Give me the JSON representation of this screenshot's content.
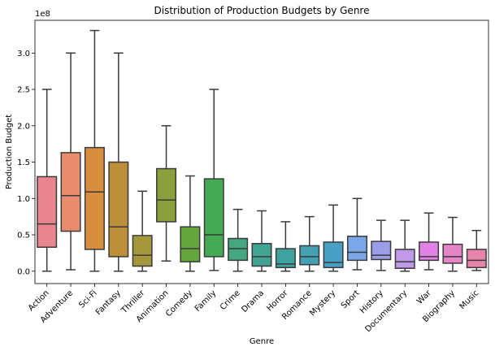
{
  "chart_data": {
    "type": "box",
    "title": "Distribution of Production Budgets by Genre",
    "xlabel": "Genre",
    "ylabel": "Production Budget",
    "y_offset_label": "1e8",
    "ylim": [
      -0.17,
      3.45
    ],
    "y_ticks": [
      0.0,
      0.5,
      1.0,
      1.5,
      2.0,
      2.5,
      3.0
    ],
    "y_tick_labels": [
      "0.0",
      "0.5",
      "1.0",
      "1.5",
      "2.0",
      "2.5",
      "3.0"
    ],
    "grid": false,
    "units_note": "values in units of 1e8",
    "categories": [
      "Action",
      "Adventure",
      "Sci-Fi",
      "Fantasy",
      "Thriller",
      "Animation",
      "Comedy",
      "Family",
      "Crime",
      "Drama",
      "Horror",
      "Romance",
      "Mystery",
      "Sport",
      "History",
      "Documentary",
      "War",
      "Biography",
      "Music"
    ],
    "boxes": [
      {
        "min": 0.0,
        "q1": 0.33,
        "median": 0.65,
        "q3": 1.3,
        "max": 2.5
      },
      {
        "min": 0.02,
        "q1": 0.55,
        "median": 1.04,
        "q3": 1.63,
        "max": 3.0
      },
      {
        "min": 0.0,
        "q1": 0.3,
        "median": 1.09,
        "q3": 1.7,
        "max": 3.31
      },
      {
        "min": 0.0,
        "q1": 0.2,
        "median": 0.61,
        "q3": 1.5,
        "max": 3.0
      },
      {
        "min": 0.0,
        "q1": 0.07,
        "median": 0.22,
        "q3": 0.49,
        "max": 1.1
      },
      {
        "min": 0.14,
        "q1": 0.68,
        "median": 0.98,
        "q3": 1.41,
        "max": 2.0
      },
      {
        "min": 0.0,
        "q1": 0.13,
        "median": 0.31,
        "q3": 0.61,
        "max": 1.31
      },
      {
        "min": 0.01,
        "q1": 0.2,
        "median": 0.5,
        "q3": 1.27,
        "max": 2.5
      },
      {
        "min": 0.0,
        "q1": 0.15,
        "median": 0.31,
        "q3": 0.45,
        "max": 0.85
      },
      {
        "min": 0.0,
        "q1": 0.07,
        "median": 0.2,
        "q3": 0.38,
        "max": 0.83
      },
      {
        "min": 0.0,
        "q1": 0.05,
        "median": 0.1,
        "q3": 0.31,
        "max": 0.68
      },
      {
        "min": 0.0,
        "q1": 0.09,
        "median": 0.2,
        "q3": 0.35,
        "max": 0.75
      },
      {
        "min": 0.0,
        "q1": 0.05,
        "median": 0.12,
        "q3": 0.4,
        "max": 0.91
      },
      {
        "min": 0.02,
        "q1": 0.15,
        "median": 0.26,
        "q3": 0.48,
        "max": 1.0
      },
      {
        "min": 0.01,
        "q1": 0.16,
        "median": 0.22,
        "q3": 0.41,
        "max": 0.7
      },
      {
        "min": 0.0,
        "q1": 0.04,
        "median": 0.13,
        "q3": 0.3,
        "max": 0.7
      },
      {
        "min": 0.02,
        "q1": 0.15,
        "median": 0.2,
        "q3": 0.4,
        "max": 0.8
      },
      {
        "min": 0.0,
        "q1": 0.11,
        "median": 0.2,
        "q3": 0.37,
        "max": 0.74
      },
      {
        "min": 0.01,
        "q1": 0.05,
        "median": 0.15,
        "q3": 0.3,
        "max": 0.56
      }
    ],
    "colors": [
      "#e8858f",
      "#e98c6d",
      "#d98d3e",
      "#bd8f3b",
      "#a5983c",
      "#8ba03c",
      "#66a53e",
      "#44aa53",
      "#45a77f",
      "#42a391",
      "#40a29f",
      "#43a1b1",
      "#49a0c6",
      "#7aa8e6",
      "#9c9de8",
      "#c09ae8",
      "#e183e6",
      "#e585c6",
      "#e884ab"
    ]
  }
}
